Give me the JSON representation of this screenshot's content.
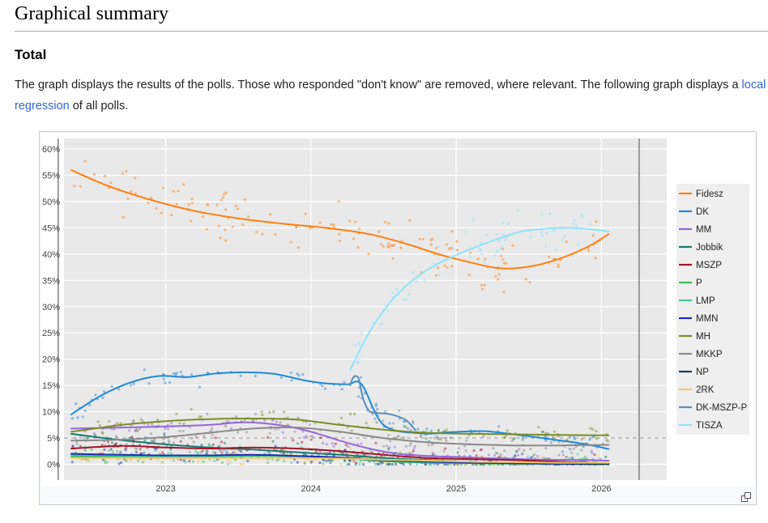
{
  "section": {
    "title": "Graphical summary",
    "subtitle": "Total",
    "intro_before": "The graph displays the results of the polls. Those who responded \"don't know\" are removed, where relevant. The following graph displays a ",
    "intro_link": "local regression",
    "intro_after": " of all polls."
  },
  "expand_icon": "expand-icon",
  "chart_data": {
    "type": "line",
    "title": "",
    "xlabel": "",
    "ylabel": "",
    "xlim": [
      2022.3,
      2026.45
    ],
    "ylim": [
      -3,
      62
    ],
    "x_ticks": [
      2023,
      2024,
      2025,
      2026
    ],
    "x_tick_labels": [
      "2023",
      "2024",
      "2025",
      "2026"
    ],
    "y_ticks": [
      0,
      5,
      10,
      15,
      20,
      25,
      30,
      35,
      40,
      45,
      50,
      55,
      60
    ],
    "y_tick_labels": [
      "0%",
      "5%",
      "10%",
      "15%",
      "20%",
      "25%",
      "30%",
      "35%",
      "40%",
      "45%",
      "50%",
      "55%",
      "60%"
    ],
    "reference_lines": {
      "threshold_y": 5,
      "election_x": [
        2022.26,
        2026.26
      ]
    },
    "legend_position": "right",
    "series": [
      {
        "name": "Fidesz",
        "color": "#ff7f0e",
        "x": [
          2022.35,
          2022.6,
          2022.9,
          2023.2,
          2023.5,
          2023.8,
          2024.1,
          2024.4,
          2024.65,
          2024.9,
          2025.1,
          2025.3,
          2025.5,
          2025.7,
          2025.9,
          2026.05
        ],
        "y": [
          56,
          53,
          50.3,
          48.2,
          46.8,
          45.8,
          45,
          43.8,
          42,
          39.8,
          38.4,
          37.3,
          37.6,
          39,
          41.3,
          43.8
        ]
      },
      {
        "name": "DK",
        "color": "#1f8ad6",
        "x": [
          2022.35,
          2022.55,
          2022.75,
          2022.95,
          2023.15,
          2023.35,
          2023.55,
          2023.75,
          2023.95,
          2024.1,
          2024.25,
          2024.35,
          2024.5,
          2024.75,
          2024.95,
          2025.2,
          2025.45,
          2025.7,
          2025.9,
          2026.05
        ],
        "y": [
          9.5,
          13,
          15.5,
          16.8,
          16.6,
          17.3,
          17.5,
          17.2,
          16,
          15.4,
          15.2,
          15.2,
          7.5,
          5.9,
          6.1,
          6.3,
          5.5,
          4.6,
          3.8,
          2.9
        ]
      },
      {
        "name": "MM",
        "color": "#9467d9",
        "x": [
          2022.35,
          2022.7,
          2023.0,
          2023.3,
          2023.55,
          2023.8,
          2024.0,
          2024.2,
          2024.4,
          2024.6,
          2024.8,
          2025.0,
          2025.3,
          2025.6,
          2025.9,
          2026.05
        ],
        "y": [
          6.8,
          7,
          7.2,
          7.5,
          8,
          7.4,
          6.2,
          4.5,
          3,
          2,
          1.6,
          1.4,
          1.1,
          0.9,
          0.8,
          0.7
        ]
      },
      {
        "name": "Jobbik",
        "color": "#1a7a6e",
        "x": [
          2022.35,
          2022.7,
          2023.0,
          2023.3,
          2023.6,
          2023.9,
          2024.2,
          2024.5,
          2024.8,
          2025.1,
          2025.4,
          2025.7,
          2026.05
        ],
        "y": [
          5.8,
          4.6,
          3.8,
          3.2,
          2.8,
          2.3,
          1.8,
          1.2,
          0.8,
          0.5,
          0.3,
          0.2,
          0.1
        ]
      },
      {
        "name": "MSZP",
        "color": "#a3142a",
        "x": [
          2022.35,
          2022.7,
          2023.0,
          2023.3,
          2023.6,
          2023.9,
          2024.2,
          2024.5,
          2024.8,
          2025.1,
          2025.4,
          2025.7,
          2026.05
        ],
        "y": [
          3,
          3.5,
          3.2,
          3,
          3.2,
          3,
          2.5,
          1.8,
          1.2,
          1,
          0.8,
          0.5,
          0.2
        ]
      },
      {
        "name": "P",
        "color": "#3cba54",
        "x": [
          2022.35,
          2022.7,
          2023.0,
          2023.3,
          2023.6,
          2023.9,
          2024.2,
          2024.5,
          2024.8,
          2025.1,
          2025.4,
          2025.7,
          2026.05
        ],
        "y": [
          1.5,
          1.4,
          1.3,
          1.4,
          1.6,
          1.5,
          1.2,
          0.6,
          0.3,
          0.2,
          0.1,
          0.1,
          0
        ]
      },
      {
        "name": "LMP",
        "color": "#3fc9a0",
        "x": [
          2022.35,
          2022.7,
          2023.0,
          2023.3,
          2023.6,
          2023.9,
          2024.2,
          2024.5,
          2024.8,
          2025.1,
          2025.4,
          2025.7,
          2026.05
        ],
        "y": [
          1.8,
          1.6,
          1.5,
          1.5,
          1.7,
          1.5,
          1.2,
          0.7,
          0.4,
          0.3,
          0.2,
          0.1,
          0.1
        ]
      },
      {
        "name": "MMN",
        "color": "#1f2bb5",
        "x": [
          2022.35,
          2022.7,
          2023.0,
          2023.3,
          2023.6,
          2023.9,
          2024.2,
          2024.5,
          2024.8,
          2025.1,
          2025.4,
          2025.7,
          2026.05
        ],
        "y": [
          2,
          1.8,
          1.7,
          1.7,
          1.8,
          1.6,
          1.3,
          0.8,
          0.5,
          0.3,
          0.2,
          0.1,
          0.1
        ]
      },
      {
        "name": "MH",
        "color": "#7a8c2a",
        "x": [
          2022.35,
          2022.7,
          2023.0,
          2023.3,
          2023.6,
          2023.9,
          2024.2,
          2024.5,
          2024.8,
          2025.1,
          2025.4,
          2025.7,
          2026.05
        ],
        "y": [
          6.2,
          7.5,
          8.2,
          8.6,
          8.7,
          8.5,
          7.5,
          6.6,
          6,
          5.8,
          5.7,
          5.6,
          5.5
        ]
      },
      {
        "name": "MKKP",
        "color": "#8a8a8a",
        "x": [
          2022.35,
          2022.7,
          2023.0,
          2023.3,
          2023.6,
          2023.9,
          2024.2,
          2024.5,
          2024.8,
          2025.1,
          2025.4,
          2025.7,
          2026.05
        ],
        "y": [
          4.5,
          4.7,
          5.2,
          6,
          6.8,
          7,
          6.2,
          5,
          4.2,
          3.8,
          3.6,
          3.6,
          3.7
        ]
      },
      {
        "name": "NP",
        "color": "#143c5a",
        "x": [
          2024.2,
          2024.5,
          2024.8,
          2025.1,
          2025.4,
          2025.7,
          2026.05
        ],
        "y": [
          1.2,
          0.8,
          0.6,
          0.5,
          0.3,
          0.2,
          0.1
        ]
      },
      {
        "name": "2RK",
        "color": "#f0c96a",
        "x": [
          2022.35,
          2022.7,
          2023.0,
          2023.3,
          2023.6,
          2023.9,
          2024.2,
          2024.5,
          2024.8,
          2025.1,
          2025.4,
          2025.7,
          2026.05
        ],
        "y": [
          1.2,
          1.2,
          1.2,
          1.2,
          1.2,
          1.2,
          1.1,
          0.9,
          0.7,
          0.5,
          0.4,
          0.3,
          0.3
        ]
      },
      {
        "name": "DK-MSZP-P",
        "color": "#5b8db8",
        "x": [
          2024.27,
          2024.29,
          2024.31,
          2024.33,
          2024.36,
          2024.4,
          2024.45,
          2024.55,
          2024.65,
          2024.72
        ],
        "y": [
          15,
          16.5,
          16.8,
          16.2,
          12.5,
          10.2,
          9.8,
          9.5,
          8.5,
          6.5
        ]
      },
      {
        "name": "TISZA",
        "color": "#8fe3fb",
        "x": [
          2024.27,
          2024.4,
          2024.55,
          2024.7,
          2024.85,
          2025.0,
          2025.15,
          2025.3,
          2025.45,
          2025.6,
          2025.75,
          2025.9,
          2026.05
        ],
        "y": [
          18,
          25,
          31,
          35,
          37.8,
          39.8,
          41.5,
          43,
          44.3,
          44.8,
          45,
          44.8,
          44.3
        ]
      }
    ]
  }
}
